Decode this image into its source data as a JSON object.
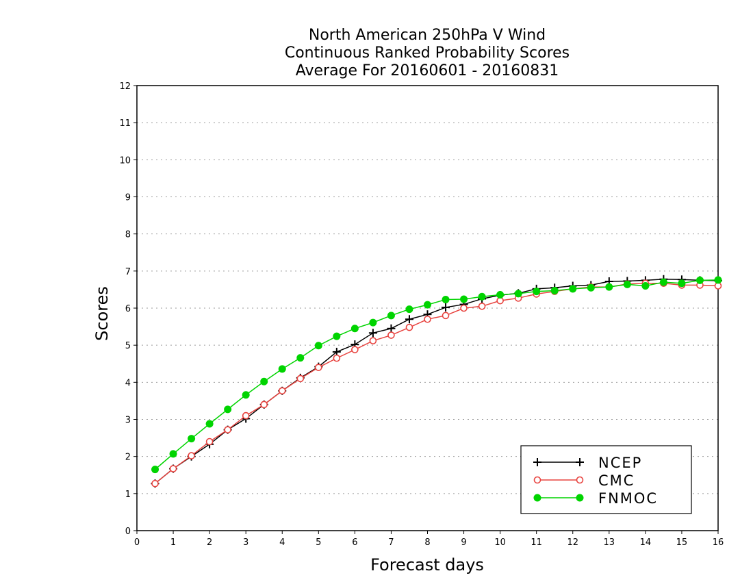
{
  "chart_data": {
    "type": "line",
    "title_lines": [
      "North American 250hPa V Wind",
      "Continuous Ranked Probability Scores",
      "Average For 20160601 - 20160831"
    ],
    "xlabel": "Forecast days",
    "ylabel": "Scores",
    "xlim": [
      0,
      16
    ],
    "ylim": [
      0,
      12
    ],
    "xticks": [
      "0",
      "1",
      "2",
      "3",
      "4",
      "5",
      "6",
      "7",
      "8",
      "9",
      "10",
      "11",
      "12",
      "13",
      "14",
      "15",
      "16"
    ],
    "yticks": [
      "0",
      "1",
      "2",
      "3",
      "4",
      "5",
      "6",
      "7",
      "8",
      "9",
      "10",
      "11",
      "12"
    ],
    "grid": "horizontal dotted",
    "legend_position": "bottom-right",
    "x": [
      0.5,
      1,
      1.5,
      2,
      2.5,
      3,
      3.5,
      4,
      4.5,
      5,
      5.5,
      6,
      6.5,
      7,
      7.5,
      8,
      8.5,
      9,
      9.5,
      10,
      10.5,
      11,
      11.5,
      12,
      12.5,
      13,
      13.5,
      14,
      14.5,
      15,
      15.5,
      16
    ],
    "series": [
      {
        "name": "NCEP",
        "color": "#000000",
        "marker": "plus",
        "values": [
          1.27,
          1.67,
          2.0,
          2.33,
          2.72,
          3.02,
          3.4,
          3.77,
          4.12,
          4.42,
          4.82,
          5.02,
          5.33,
          5.45,
          5.7,
          5.83,
          6.02,
          6.1,
          6.25,
          6.35,
          6.4,
          6.52,
          6.55,
          6.6,
          6.62,
          6.72,
          6.73,
          6.75,
          6.78,
          6.77,
          6.75,
          6.74
        ]
      },
      {
        "name": "CMC",
        "color": "#e8433f",
        "marker": "open-circle",
        "values": [
          1.27,
          1.67,
          2.02,
          2.4,
          2.72,
          3.1,
          3.4,
          3.77,
          4.1,
          4.4,
          4.65,
          4.88,
          5.12,
          5.27,
          5.48,
          5.7,
          5.8,
          6.0,
          6.05,
          6.2,
          6.27,
          6.38,
          6.45,
          6.52,
          6.57,
          6.57,
          6.65,
          6.67,
          6.67,
          6.62,
          6.62,
          6.6
        ]
      },
      {
        "name": "FNMOC",
        "color": "#00d400",
        "marker": "filled-circle",
        "values": [
          1.65,
          2.07,
          2.48,
          2.88,
          3.27,
          3.66,
          4.02,
          4.36,
          4.66,
          4.99,
          5.24,
          5.45,
          5.61,
          5.8,
          5.97,
          6.09,
          6.23,
          6.24,
          6.31,
          6.36,
          6.39,
          6.45,
          6.47,
          6.52,
          6.55,
          6.57,
          6.64,
          6.6,
          6.7,
          6.67,
          6.75,
          6.76
        ]
      }
    ]
  }
}
